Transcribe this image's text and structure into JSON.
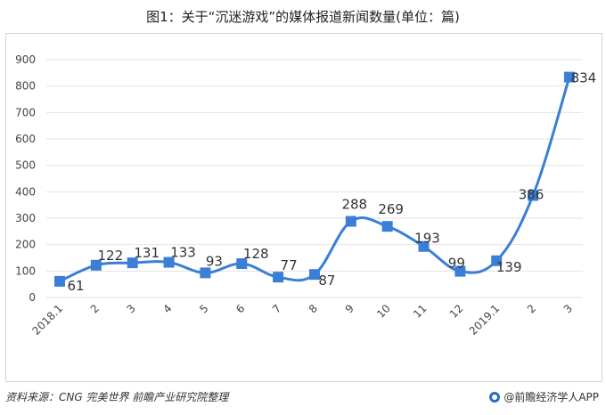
{
  "title": "图1：关于“沉迷游戏”的媒体报道新闻数量(单位：篇)",
  "source": "资料来源：CNG 完美世界 前瞻产业研究院整理",
  "brand": "@前瞻经济学人APP",
  "colors": {
    "line": "#3a7fd5",
    "marker": "#3a7fd5",
    "grid": "#e2e2e2"
  },
  "chart_data": {
    "type": "line",
    "title": "图1：关于“沉迷游戏”的媒体报道新闻数量(单位：篇)",
    "categories": [
      "2018.1",
      "2",
      "3",
      "4",
      "5",
      "6",
      "7",
      "8",
      "9",
      "10",
      "11",
      "12",
      "2019.1",
      "2",
      "3"
    ],
    "series": [
      {
        "values": [
          61,
          122,
          131,
          133,
          93,
          128,
          77,
          87,
          288,
          269,
          193,
          99,
          139,
          386,
          834
        ]
      }
    ],
    "ylim": [
      0,
      900
    ],
    "yticks": [
      0,
      100,
      200,
      300,
      400,
      500,
      600,
      700,
      800,
      900
    ],
    "grid": true,
    "legend": "none",
    "xlabel": "",
    "ylabel": ""
  }
}
